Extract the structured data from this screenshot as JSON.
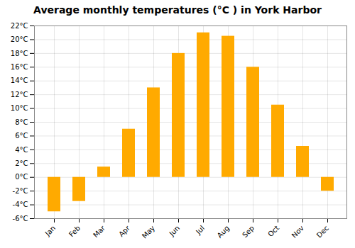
{
  "chart_data": {
    "type": "bar",
    "title": "Average monthly temperatures (°C ) in York Harbor",
    "categories": [
      "Jan",
      "Feb",
      "Mar",
      "Apr",
      "May",
      "Jun",
      "Jul",
      "Aug",
      "Sep",
      "Oct",
      "Nov",
      "Dec"
    ],
    "values": [
      -5.0,
      -3.5,
      1.5,
      7.0,
      13.0,
      18.0,
      21.0,
      20.5,
      16.0,
      10.5,
      4.5,
      -2.0
    ],
    "color": "#FFAA00",
    "ylim": [
      -6,
      22
    ],
    "yticks": [
      {
        "value": -6,
        "label": "-6°C"
      },
      {
        "value": -4,
        "label": "-4°C"
      },
      {
        "value": -2,
        "label": "-2°C"
      },
      {
        "value": 0,
        "label": "0°C"
      },
      {
        "value": 2,
        "label": "2°C"
      },
      {
        "value": 4,
        "label": "4°C"
      },
      {
        "value": 6,
        "label": "6°C"
      },
      {
        "value": 8,
        "label": "8°C"
      },
      {
        "value": 10,
        "label": "10°C"
      },
      {
        "value": 12,
        "label": "12°C"
      },
      {
        "value": 14,
        "label": "14°C"
      },
      {
        "value": 16,
        "label": "16°C"
      },
      {
        "value": 18,
        "label": "18°C"
      },
      {
        "value": 20,
        "label": "20°C"
      },
      {
        "value": 22,
        "label": "22°C"
      }
    ],
    "grid": true
  }
}
